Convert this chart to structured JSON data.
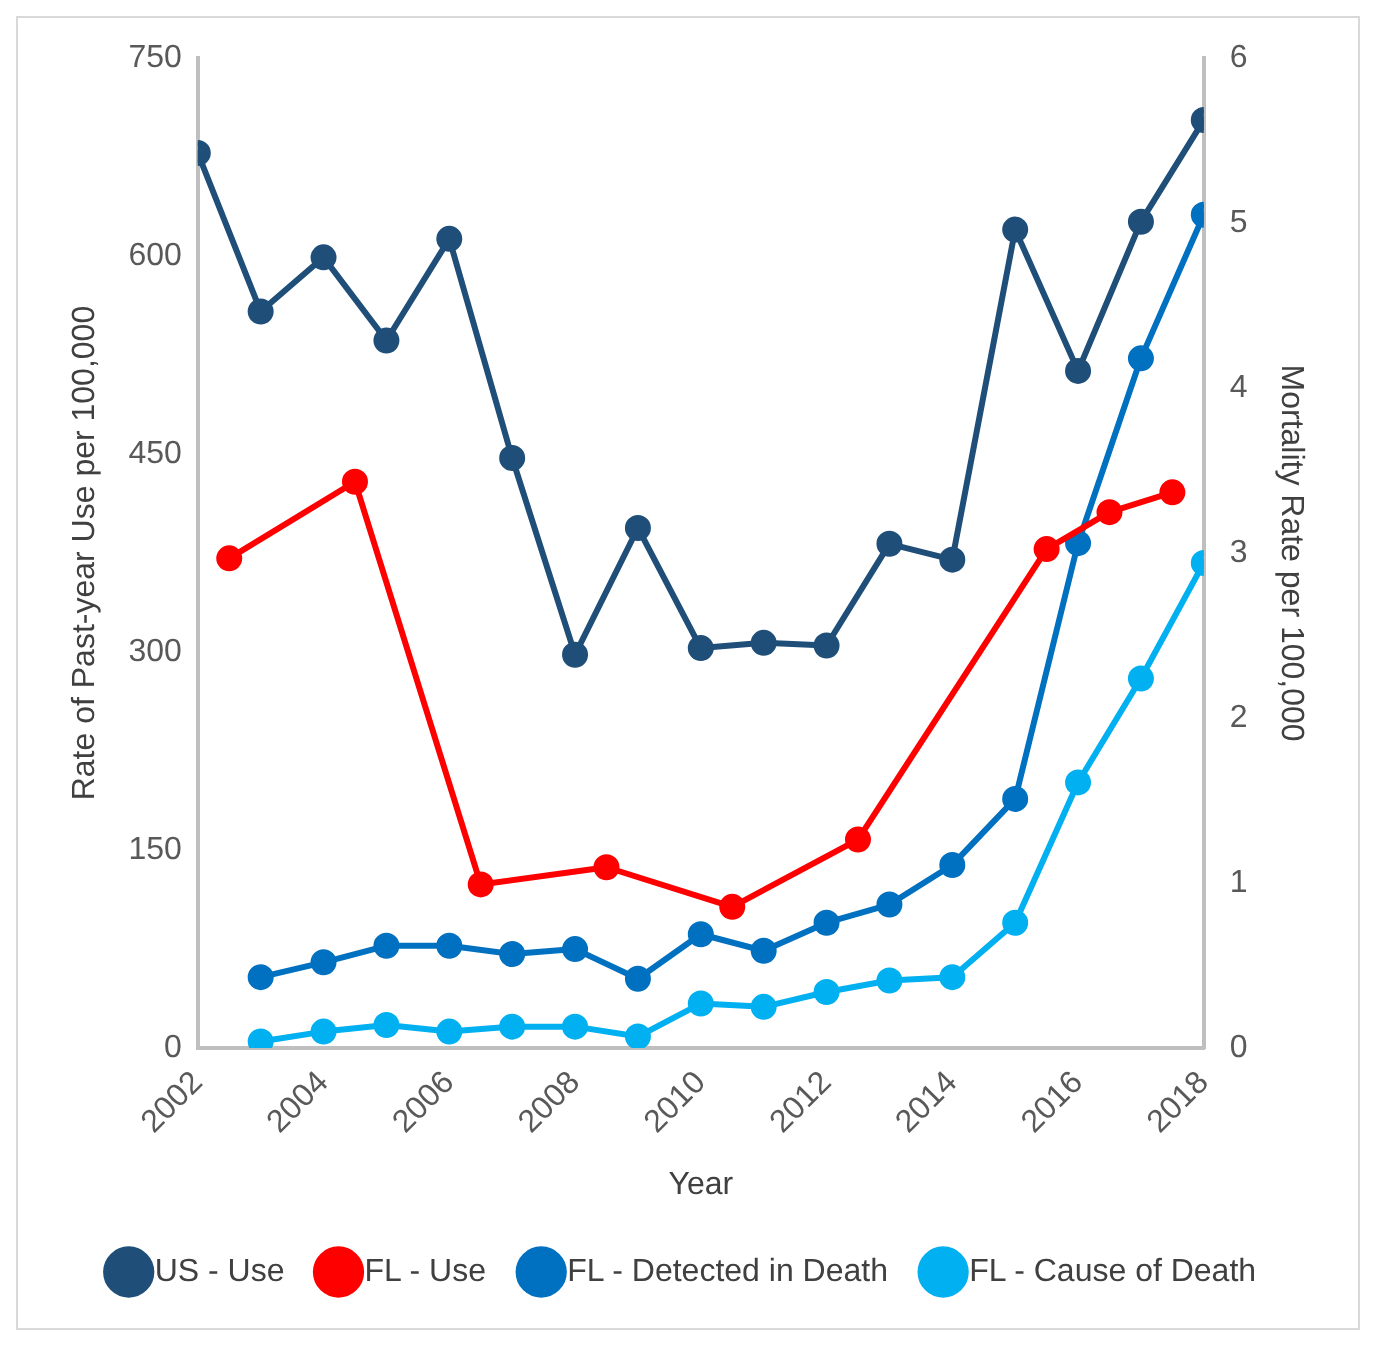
{
  "chart_data": {
    "type": "line",
    "xlabel": "Year",
    "ylabel": "Rate of Past-year Use per 100,000",
    "y2label": "Mortality Rate per 100,000",
    "xlim": [
      2002,
      2018
    ],
    "xticks": [
      2002,
      2004,
      2006,
      2008,
      2010,
      2012,
      2014,
      2016,
      2018
    ],
    "ylim": [
      0,
      750
    ],
    "yticks": [
      0,
      150,
      300,
      450,
      600,
      750
    ],
    "y2lim": [
      0,
      6
    ],
    "y2ticks": [
      0,
      1,
      2,
      3,
      4,
      5,
      6
    ],
    "grid": false,
    "legend": "bottom",
    "marker": "circle",
    "line_style": "solid",
    "series": [
      {
        "name": "US - Use",
        "color": "#1f4e79",
        "x": [
          2002,
          2003,
          2004,
          2005,
          2006,
          2007,
          2008,
          2009,
          2010,
          2011,
          2012,
          2013,
          2014,
          2015,
          2016,
          2017,
          2018
        ],
        "values": [
          678,
          558,
          599,
          536,
          613,
          447,
          298,
          394,
          303,
          307,
          305,
          382,
          370,
          620,
          513,
          626,
          703
        ]
      },
      {
        "name": "FL - Use",
        "color": "#ff0000",
        "x": [
          2002.5,
          2004.5,
          2006.5,
          2008.5,
          2010.5,
          2012.5,
          2015.5,
          2016.5,
          2017.5
        ],
        "values": [
          371,
          429,
          124,
          137,
          107,
          158,
          378,
          406,
          421
        ]
      },
      {
        "name": "FL - Detected in Death",
        "color": "#0070c0",
        "axis": "y2",
        "x": [
          2003,
          2004,
          2005,
          2006,
          2007,
          2008,
          2009,
          2010,
          2011,
          2012,
          2013,
          2014,
          2015,
          2016,
          2017,
          2018
        ],
        "values": [
          0.43,
          0.52,
          0.62,
          0.62,
          0.57,
          0.6,
          0.42,
          0.69,
          0.59,
          0.76,
          0.87,
          1.11,
          1.51,
          3.06,
          4.18,
          5.05
        ]
      },
      {
        "name": "FL - Cause of Death",
        "color": "#00b0f0",
        "axis": "y2",
        "x": [
          2003,
          2004,
          2005,
          2006,
          2007,
          2008,
          2009,
          2010,
          2011,
          2012,
          2013,
          2014,
          2015,
          2016,
          2017,
          2018
        ],
        "values": [
          0.04,
          0.1,
          0.14,
          0.1,
          0.13,
          0.13,
          0.07,
          0.27,
          0.25,
          0.34,
          0.41,
          0.43,
          0.76,
          1.61,
          2.24,
          2.94
        ]
      }
    ]
  }
}
